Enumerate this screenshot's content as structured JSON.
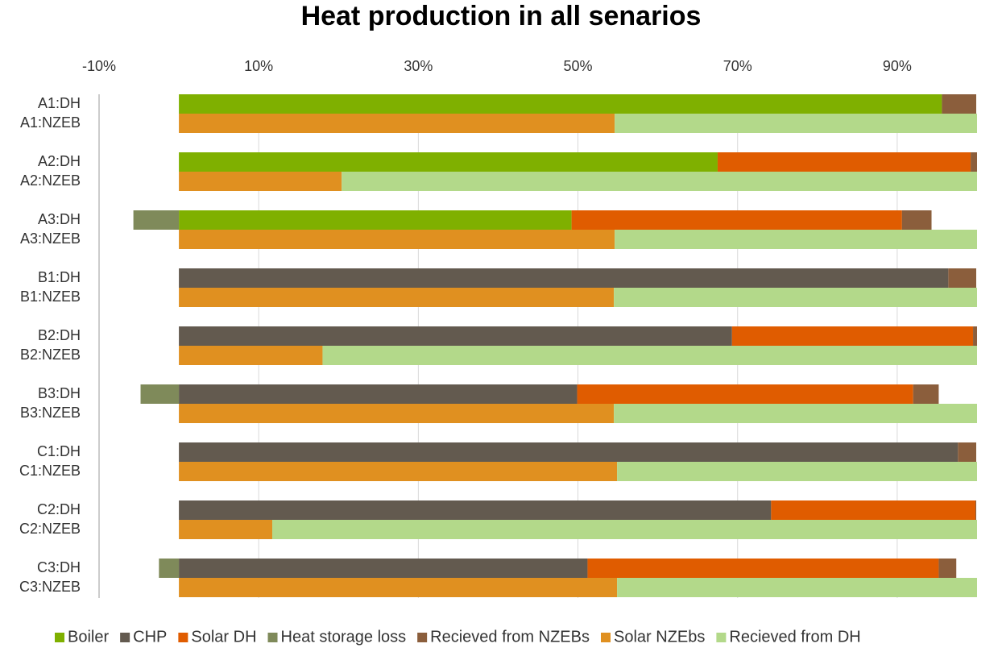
{
  "chart_data": {
    "type": "stacked-bar-horizontal",
    "title": "Heat production in all senarios",
    "categories": [
      "A1:DH",
      "A1:NZEB",
      "A2:DH",
      "A2:NZEB",
      "A3:DH",
      "A3:NZEB",
      "B1:DH",
      "B1:NZEB",
      "B2:DH",
      "B2:NZEB",
      "B3:DH",
      "B3:NZEB",
      "C1:DH",
      "C1:NZEB",
      "C2:DH",
      "C2:NZEB",
      "C3:DH",
      "C3:NZEB"
    ],
    "series": [
      {
        "name": "Boiler",
        "color": "#7fb000",
        "values": [
          95.6,
          null,
          67.5,
          null,
          49.2,
          null,
          null,
          null,
          null,
          null,
          null,
          null,
          null,
          null,
          null,
          null,
          null,
          null
        ]
      },
      {
        "name": "CHP",
        "color": "#635a4f",
        "values": [
          null,
          null,
          null,
          null,
          null,
          null,
          96.4,
          null,
          69.3,
          null,
          49.9,
          null,
          97.6,
          null,
          74.2,
          null,
          51.2,
          null
        ]
      },
      {
        "name": "Solar DH",
        "color": "#e05c00",
        "values": [
          null,
          null,
          31.7,
          null,
          41.4,
          null,
          null,
          null,
          30.2,
          null,
          42.1,
          null,
          null,
          null,
          25.6,
          null,
          44.0,
          null
        ]
      },
      {
        "name": "Heat storage loss",
        "color": "#7f8a5a",
        "values": [
          null,
          null,
          null,
          null,
          -5.7,
          null,
          null,
          null,
          null,
          null,
          -4.8,
          null,
          null,
          null,
          null,
          null,
          -2.5,
          null
        ]
      },
      {
        "name": "Recieved from NZEBs",
        "color": "#8b5e3c",
        "values": [
          4.3,
          null,
          0.8,
          null,
          3.7,
          null,
          3.5,
          null,
          0.5,
          null,
          3.2,
          null,
          2.3,
          null,
          0.1,
          null,
          2.2,
          null
        ]
      },
      {
        "name": "Solar NZEbs",
        "color": "#e09020",
        "values": [
          null,
          54.6,
          null,
          20.4,
          null,
          54.6,
          null,
          54.5,
          null,
          18.0,
          null,
          54.5,
          null,
          54.9,
          null,
          11.7,
          null,
          54.9
        ]
      },
      {
        "name": "Recieved from DH",
        "color": "#b3d98a",
        "values": [
          null,
          45.4,
          null,
          79.6,
          null,
          45.4,
          null,
          45.5,
          null,
          82.0,
          null,
          45.5,
          null,
          45.1,
          null,
          88.3,
          null,
          45.1
        ]
      }
    ],
    "xlim": [
      -10,
      100
    ],
    "xticks": [
      {
        "value": -10,
        "label": "-10%"
      },
      {
        "value": 10,
        "label": "10%"
      },
      {
        "value": 30,
        "label": "30%"
      },
      {
        "value": 50,
        "label": "50%"
      },
      {
        "value": 70,
        "label": "70%"
      },
      {
        "value": 90,
        "label": "90%"
      }
    ],
    "grid": true,
    "legend": "bottom"
  }
}
